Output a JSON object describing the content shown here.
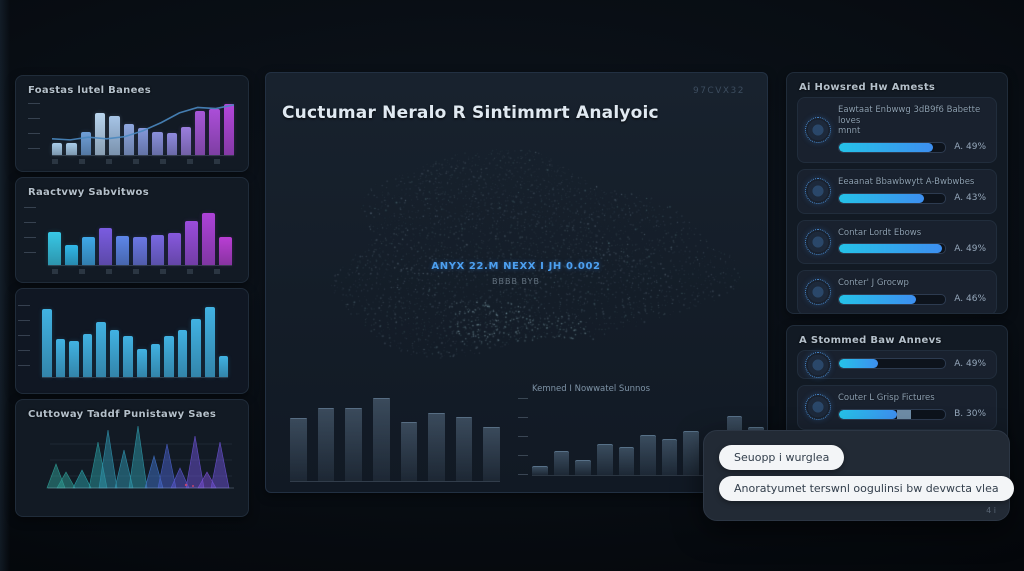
{
  "main_panel": {
    "title": "Cuctumar Neralo R Sintimmrt Analyoic",
    "corner_label": "97CVX32",
    "center_metric": "ANYX 22.M NEXX I JH 0.002",
    "center_submetric": "BBBB BYB"
  },
  "right_panel_top": {
    "title": "Ai Howsred Hw Amests",
    "rows": [
      {
        "icon": "neural-gear-icon",
        "label": "Eawtaat Enbwwg 3dB9f6 Babette loves",
        "sublabel": "mnnt",
        "value": 88,
        "pct": "A. 49%"
      },
      {
        "icon": "neural-gear-icon",
        "label": "Eeaanat Bbawbwytt A-Bwbwbes",
        "sublabel": "",
        "value": 80,
        "pct": "A. 43%"
      },
      {
        "icon": "neural-gear-icon",
        "label": "Contar Lordt Ebows",
        "sublabel": "",
        "value": 97,
        "pct": "A. 49%"
      },
      {
        "icon": "neural-gear-icon",
        "label": "Conter' J Grocwp",
        "sublabel": "",
        "value": 72,
        "pct": "A. 46%"
      }
    ]
  },
  "right_panel_bottom": {
    "title": "A Stommed Baw Annevs",
    "rows": [
      {
        "icon": "neural-gear-icon",
        "label": "",
        "sublabel": "",
        "value": 37,
        "pct": "A. 49%"
      },
      {
        "icon": "neural-gear-icon",
        "label": "Couter L Grisp Fictures",
        "sublabel": "",
        "value": 55,
        "value2": 13,
        "pct": "B. 30%"
      }
    ]
  },
  "chat": {
    "bubbles": [
      "Seuopp i wurglea",
      "Anoratyumet terswnl oogulinsi bw devwcta vlea"
    ],
    "footnote": "4 i"
  },
  "colors": {
    "accent_cyan": "#25c2e8",
    "accent_blue": "#3d8ff0",
    "accent_purple": "#b446dc",
    "metric_blue": "#4da0f0",
    "panel_bg": "#121a24",
    "bubble_bg": "#f3f5f7"
  },
  "chart_data": [
    {
      "id": "trend",
      "type": "bar",
      "title": "Foastas lutel Banees",
      "values": [
        22,
        22,
        42,
        78,
        72,
        58,
        50,
        42,
        40,
        52,
        82,
        86,
        94
      ],
      "colors": [
        "#a9cdea",
        "#a9cdea",
        "#6f9fd8",
        "#b9d5ee",
        "#a6c4e6",
        "#8fa8e0",
        "#8598dc",
        "#8a90dc",
        "#8f8ade",
        "#9a7ede",
        "#a757d8",
        "#ab4ed8",
        "#b446dc"
      ],
      "line": [
        30,
        28,
        33,
        30,
        34,
        45,
        60,
        78,
        88,
        86,
        93
      ],
      "line_color": "#4a88c0",
      "ylim": [
        0,
        100
      ],
      "grid": false,
      "legend": "none"
    },
    {
      "id": "reactivity",
      "type": "bar",
      "title": "Raactvwy Sabvitwos",
      "values": [
        55,
        33,
        46,
        62,
        48,
        47,
        50,
        53,
        74,
        86,
        47
      ],
      "colors": [
        "#38c8e6",
        "#30b8e8",
        "#3fa8e8",
        "#7a5ce0",
        "#5d86e8",
        "#6b78e4",
        "#7968e2",
        "#8758de",
        "#9a4cdc",
        "#ad42d8",
        "#b93ed4"
      ],
      "ylim": [
        0,
        100
      ],
      "grid": false,
      "legend": "none"
    },
    {
      "id": "equalizer",
      "type": "bar",
      "title": "",
      "values": [
        92,
        52,
        48,
        58,
        75,
        63,
        55,
        38,
        45,
        55,
        63,
        78,
        95,
        28
      ],
      "color": "#41b2e2",
      "ylim": [
        0,
        100
      ],
      "grid": false,
      "legend": "none"
    },
    {
      "id": "peaks",
      "type": "area",
      "title": "Cuttoway Taddf Punistawy Saes",
      "peaks": [
        [
          10,
          24,
          "#2f9e96"
        ],
        [
          20,
          16,
          "#2f9e96"
        ],
        [
          36,
          18,
          "#2aa0a8"
        ],
        [
          52,
          46,
          "#2a9aa0"
        ],
        [
          62,
          58,
          "#2f93ae"
        ],
        [
          78,
          38,
          "#2f93ae"
        ],
        [
          92,
          62,
          "#2d98a8"
        ],
        [
          108,
          32,
          "#3f72c8"
        ],
        [
          121,
          44,
          "#4a62cc"
        ],
        [
          134,
          20,
          "#5a55d0"
        ],
        [
          149,
          52,
          "#6b52d4"
        ],
        [
          161,
          16,
          "#7b4ed6"
        ],
        [
          174,
          46,
          "#6b52d4"
        ]
      ],
      "ylim": [
        0,
        70
      ],
      "grid": true,
      "legend": "none"
    },
    {
      "id": "main-left",
      "type": "bar",
      "title": "",
      "values": [
        65,
        75,
        75,
        85,
        60,
        70,
        66,
        55
      ],
      "color": "#7f9cb8",
      "ghost": true,
      "ylim": [
        0,
        100
      ],
      "grid": false,
      "legend": "none"
    },
    {
      "id": "main-right",
      "type": "bar",
      "title": "Kemned I Nowwatel Sunnos",
      "values": [
        10,
        30,
        18,
        38,
        35,
        50,
        45,
        55,
        48,
        75,
        60
      ],
      "color": "#7fa2c0",
      "ghost": true,
      "ylim": [
        0,
        100
      ],
      "grid": false,
      "legend": "none"
    }
  ]
}
